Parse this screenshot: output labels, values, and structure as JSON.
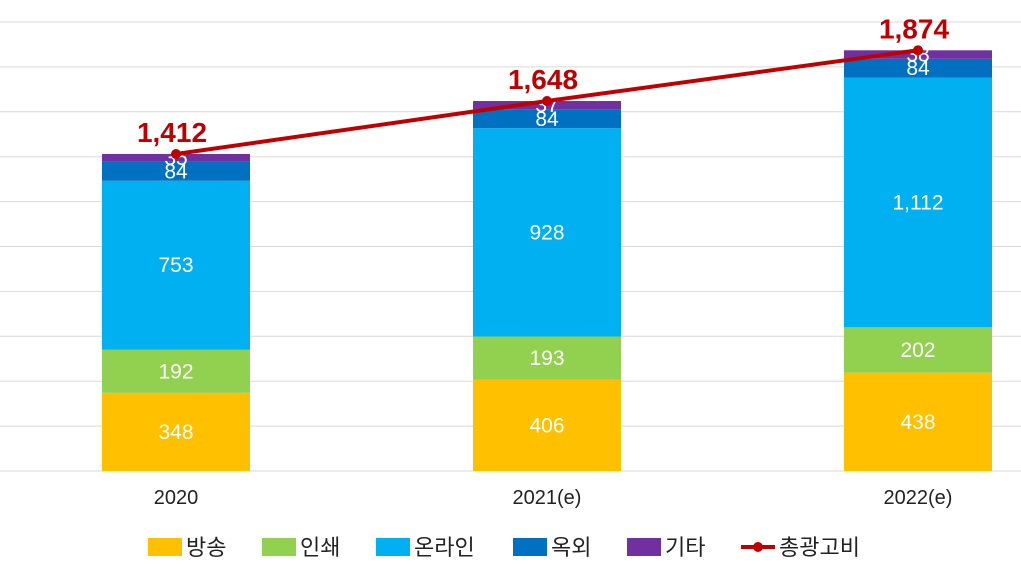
{
  "colors": {
    "방송": "#ffc000",
    "인쇄": "#92d050",
    "온라인": "#00b0f0",
    "옥외": "#0070c0",
    "기타": "#7030a0",
    "총광고비": "#c00000",
    "grid": "#d9d9d9"
  },
  "chart_data": {
    "type": "bar",
    "stacked": true,
    "categories": [
      "2020",
      "2021(e)",
      "2022(e)"
    ],
    "series": [
      {
        "name": "방송",
        "values": [
          348,
          406,
          438
        ],
        "labels": [
          "348",
          "406",
          "438"
        ]
      },
      {
        "name": "인쇄",
        "values": [
          192,
          193,
          202
        ],
        "labels": [
          "192",
          "193",
          "202"
        ]
      },
      {
        "name": "온라인",
        "values": [
          753,
          928,
          1112
        ],
        "labels": [
          "753",
          "928",
          "1,112"
        ]
      },
      {
        "name": "옥외",
        "values": [
          84,
          84,
          84
        ],
        "labels": [
          "84",
          "84",
          "84"
        ]
      },
      {
        "name": "기타",
        "values": [
          35,
          37,
          38
        ],
        "labels": [
          "35",
          "37",
          "38"
        ]
      }
    ],
    "line": {
      "name": "총광고비",
      "values": [
        1412,
        1648,
        1874
      ],
      "labels": [
        "1,412",
        "1,648",
        "1,874"
      ]
    },
    "ylim": [
      0,
      2000
    ],
    "grid": true,
    "legend_position": "bottom"
  }
}
